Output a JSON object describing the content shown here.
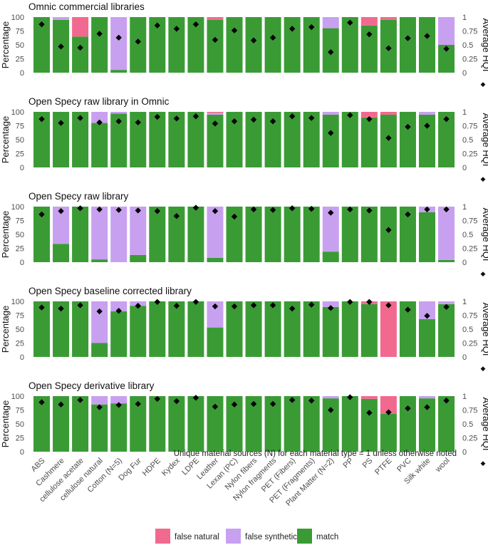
{
  "chart_data": {
    "type": "bar",
    "stacked": true,
    "categories": [
      "ABS",
      "Cashmere",
      "cellulose acetate",
      "cellulose natural",
      "Cotton (N=5)",
      "Dog Fur",
      "HDPE",
      "Kydex",
      "LDPE",
      "Leather",
      "Lexan (PC)",
      "Nylon fibers",
      "Nylon fragments",
      "PET (Fibers)",
      "PET (Fragments)",
      "Plant Matter (N=2)",
      "PP",
      "PS",
      "PTFE",
      "PVC",
      "Silk white",
      "wool"
    ],
    "left_axis": {
      "title": "Percentage",
      "ylim": [
        0,
        100
      ],
      "ticks": [
        "0",
        "25",
        "50",
        "75",
        "100"
      ]
    },
    "right_axis": {
      "title": "Average HQI",
      "ylim": [
        0,
        1
      ],
      "ticks": [
        "0",
        "0.25",
        "0.5",
        "0.75",
        "1"
      ],
      "marker": "◆"
    },
    "legend": {
      "placement": "bottom",
      "items": [
        {
          "key": "false_natural",
          "label": "false natural",
          "color": "#F2698F"
        },
        {
          "key": "false_synthetic",
          "label": "false synthetic",
          "color": "#C8A0F0"
        },
        {
          "key": "match",
          "label": "match",
          "color": "#3A9B35"
        }
      ]
    },
    "panels": [
      {
        "title": "Omnic commercial libraries",
        "match": [
          100,
          95,
          65,
          100,
          5,
          100,
          100,
          100,
          100,
          95,
          100,
          100,
          100,
          100,
          100,
          80,
          100,
          85,
          95,
          100,
          100,
          50
        ],
        "false_synthetic": [
          0,
          5,
          0,
          0,
          95,
          0,
          0,
          0,
          0,
          0,
          0,
          0,
          0,
          0,
          0,
          20,
          0,
          0,
          0,
          0,
          0,
          50
        ],
        "false_natural": [
          0,
          0,
          35,
          0,
          0,
          0,
          0,
          0,
          0,
          5,
          0,
          0,
          0,
          0,
          0,
          0,
          0,
          15,
          5,
          0,
          0,
          0
        ],
        "hqi": [
          0.87,
          0.47,
          0.45,
          0.7,
          0.63,
          0.56,
          0.85,
          0.79,
          0.87,
          0.59,
          0.76,
          0.58,
          0.63,
          0.79,
          0.82,
          0.37,
          0.9,
          0.69,
          0.44,
          0.62,
          0.66,
          0.43
        ]
      },
      {
        "title": "Open Specy raw library in Omnic",
        "match": [
          100,
          100,
          100,
          80,
          97,
          100,
          100,
          100,
          100,
          95,
          100,
          100,
          100,
          100,
          100,
          95,
          100,
          90,
          95,
          100,
          95,
          100
        ],
        "false_synthetic": [
          0,
          0,
          0,
          20,
          3,
          0,
          0,
          0,
          0,
          3,
          0,
          0,
          0,
          0,
          0,
          5,
          0,
          0,
          0,
          0,
          5,
          0
        ],
        "false_natural": [
          0,
          0,
          0,
          0,
          0,
          0,
          0,
          0,
          0,
          2,
          0,
          0,
          0,
          0,
          0,
          0,
          0,
          10,
          5,
          0,
          0,
          0
        ],
        "hqi": [
          0.87,
          0.8,
          0.89,
          0.81,
          0.83,
          0.81,
          0.91,
          0.88,
          0.92,
          0.79,
          0.83,
          0.86,
          0.83,
          0.92,
          0.89,
          0.62,
          0.94,
          0.87,
          0.53,
          0.73,
          0.75,
          0.87
        ]
      },
      {
        "title": "Open Specy raw library",
        "match": [
          100,
          33,
          100,
          5,
          0,
          13,
          100,
          100,
          100,
          8,
          100,
          100,
          100,
          100,
          100,
          19,
          100,
          100,
          100,
          100,
          90,
          4
        ],
        "false_synthetic": [
          0,
          67,
          0,
          95,
          100,
          87,
          0,
          0,
          0,
          92,
          0,
          0,
          0,
          0,
          0,
          81,
          0,
          0,
          0,
          0,
          10,
          96
        ],
        "false_natural": [
          0,
          0,
          0,
          0,
          0,
          0,
          0,
          0,
          0,
          0,
          0,
          0,
          0,
          0,
          0,
          0,
          0,
          0,
          0,
          0,
          0,
          0
        ],
        "hqi": [
          0.86,
          0.92,
          0.97,
          0.95,
          0.94,
          0.93,
          0.92,
          0.83,
          0.98,
          0.92,
          0.82,
          0.95,
          0.94,
          0.97,
          0.96,
          0.89,
          0.95,
          0.93,
          0.58,
          0.86,
          0.95,
          0.95
        ]
      },
      {
        "title": "Open Specy baseline corrected library",
        "match": [
          100,
          100,
          100,
          25,
          82,
          92,
          100,
          100,
          100,
          53,
          100,
          100,
          100,
          100,
          100,
          90,
          100,
          95,
          0,
          100,
          68,
          95
        ],
        "false_synthetic": [
          0,
          0,
          0,
          75,
          18,
          8,
          0,
          0,
          0,
          47,
          0,
          0,
          0,
          0,
          0,
          10,
          0,
          0,
          0,
          0,
          32,
          5
        ],
        "false_natural": [
          0,
          0,
          0,
          0,
          0,
          0,
          0,
          0,
          0,
          0,
          0,
          0,
          0,
          0,
          0,
          0,
          0,
          5,
          100,
          0,
          0,
          0
        ],
        "hqi": [
          0.89,
          0.87,
          0.93,
          0.82,
          0.83,
          0.92,
          0.99,
          0.92,
          0.99,
          0.91,
          0.91,
          0.93,
          0.93,
          0.87,
          0.94,
          0.88,
          0.99,
          0.99,
          0.93,
          0.85,
          0.74,
          0.9
        ]
      },
      {
        "title": "Open Specy derivative library",
        "match": [
          100,
          100,
          100,
          85,
          87,
          100,
          100,
          100,
          100,
          100,
          100,
          100,
          100,
          100,
          100,
          96,
          100,
          95,
          68,
          100,
          96,
          100
        ],
        "false_synthetic": [
          0,
          0,
          0,
          15,
          13,
          0,
          0,
          0,
          0,
          0,
          0,
          0,
          0,
          0,
          0,
          4,
          0,
          0,
          0,
          0,
          4,
          0
        ],
        "false_natural": [
          0,
          0,
          0,
          0,
          0,
          0,
          0,
          0,
          0,
          0,
          0,
          0,
          0,
          0,
          0,
          0,
          0,
          5,
          32,
          0,
          0,
          0
        ],
        "hqi": [
          0.89,
          0.85,
          0.93,
          0.8,
          0.84,
          0.86,
          0.95,
          0.91,
          0.97,
          0.81,
          0.85,
          0.86,
          0.86,
          0.93,
          0.92,
          0.75,
          0.98,
          0.7,
          0.71,
          0.78,
          0.8,
          0.92
        ]
      }
    ],
    "annotation": "Unique material sources (N) for each material type = 1 unless otherwise noted"
  }
}
